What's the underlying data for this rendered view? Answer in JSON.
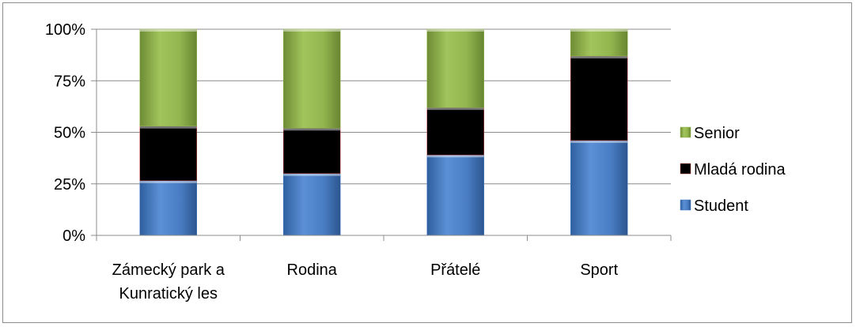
{
  "chart_data": {
    "type": "bar",
    "stacked": true,
    "percent": true,
    "categories": [
      [
        "Zámecký park a",
        "Kunratický les"
      ],
      [
        "Rodina"
      ],
      [
        "Přátelé"
      ],
      [
        "Sport"
      ]
    ],
    "series": [
      {
        "name": "Student",
        "color": "#4a7ec4",
        "values": [
          26.5,
          30,
          39,
          46
        ]
      },
      {
        "name": "Mladá rodina",
        "color": "#c84340",
        "values": [
          26.5,
          22,
          23,
          41
        ]
      },
      {
        "name": "Senior",
        "color": "#93b64f",
        "values": [
          47,
          48,
          38,
          13
        ]
      }
    ],
    "yticks": [
      "0%",
      "25%",
      "50%",
      "75%",
      "100%"
    ],
    "ylim": [
      0,
      100
    ],
    "grid": true,
    "legend": {
      "position": "right",
      "order": [
        "Senior",
        "Mladá rodina",
        "Student"
      ]
    }
  }
}
